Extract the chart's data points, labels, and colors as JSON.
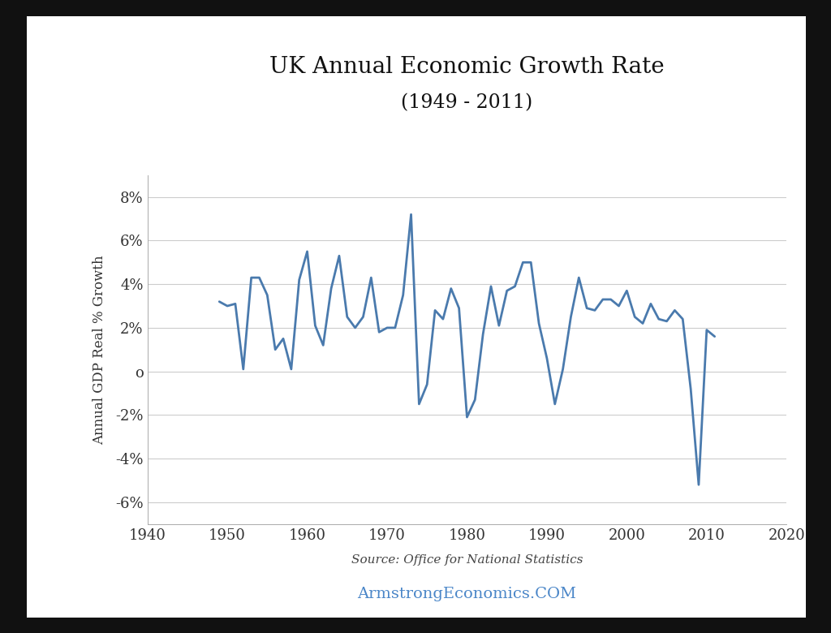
{
  "title_line1": "UK Annual Economic Growth Rate",
  "title_line2": "(1949 - 2011)",
  "ylabel": "Annual GDP Real % Growth",
  "source_text": "Source: Office for National Statistics",
  "watermark_text": "ArmstrongEconomics.COM",
  "watermark_color": "#4a86c8",
  "line_color": "#4a7aad",
  "background_color": "#ffffff",
  "outer_background": "#111111",
  "xlim": [
    1940,
    2020
  ],
  "ylim": [
    -7,
    9
  ],
  "xticks": [
    1940,
    1950,
    1960,
    1970,
    1980,
    1990,
    2000,
    2010,
    2020
  ],
  "ytick_values": [
    -6,
    -4,
    -2,
    0,
    2,
    4,
    6,
    8
  ],
  "ytick_labels": [
    "-6%",
    "-4%",
    "-2%",
    "o",
    "2%",
    "4%",
    "6%",
    "8%"
  ],
  "years": [
    1949,
    1950,
    1951,
    1952,
    1953,
    1954,
    1955,
    1956,
    1957,
    1958,
    1959,
    1960,
    1961,
    1962,
    1963,
    1964,
    1965,
    1966,
    1967,
    1968,
    1969,
    1970,
    1971,
    1972,
    1973,
    1974,
    1975,
    1976,
    1977,
    1978,
    1979,
    1980,
    1981,
    1982,
    1983,
    1984,
    1985,
    1986,
    1987,
    1988,
    1989,
    1990,
    1991,
    1992,
    1993,
    1994,
    1995,
    1996,
    1997,
    1998,
    1999,
    2000,
    2001,
    2002,
    2003,
    2004,
    2005,
    2006,
    2007,
    2008,
    2009,
    2010,
    2011
  ],
  "values": [
    3.2,
    3.0,
    3.1,
    0.1,
    4.3,
    4.3,
    3.5,
    1.0,
    1.5,
    0.1,
    4.2,
    5.5,
    2.1,
    1.2,
    3.8,
    5.3,
    2.5,
    2.0,
    2.5,
    4.3,
    1.8,
    2.0,
    2.0,
    3.5,
    7.2,
    -1.5,
    -0.6,
    2.8,
    2.4,
    3.8,
    2.9,
    -2.1,
    -1.3,
    1.7,
    3.9,
    2.1,
    3.7,
    3.9,
    5.0,
    5.0,
    2.2,
    0.6,
    -1.5,
    0.1,
    2.5,
    4.3,
    2.9,
    2.8,
    3.3,
    3.3,
    3.0,
    3.7,
    2.5,
    2.2,
    3.1,
    2.4,
    2.3,
    2.8,
    2.4,
    -0.8,
    -5.2,
    1.9,
    1.6
  ],
  "title_fontsize": 20,
  "subtitle_fontsize": 17,
  "tick_fontsize": 13,
  "ylabel_fontsize": 12,
  "source_fontsize": 11,
  "watermark_fontsize": 14
}
